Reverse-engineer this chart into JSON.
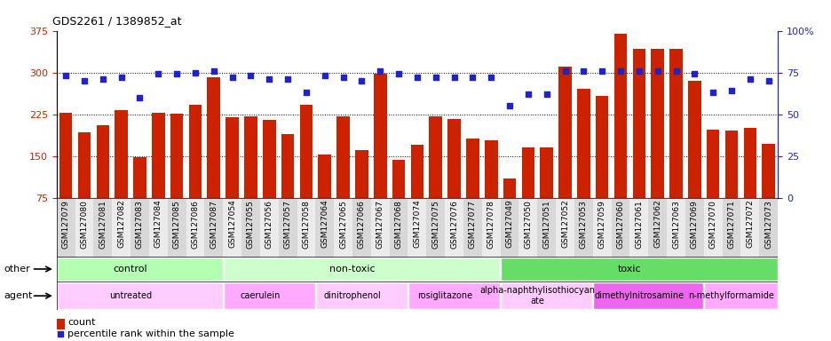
{
  "title": "GDS2261 / 1389852_at",
  "samples": [
    "GSM127079",
    "GSM127080",
    "GSM127081",
    "GSM127082",
    "GSM127083",
    "GSM127084",
    "GSM127085",
    "GSM127086",
    "GSM127087",
    "GSM127054",
    "GSM127055",
    "GSM127056",
    "GSM127057",
    "GSM127058",
    "GSM127064",
    "GSM127065",
    "GSM127066",
    "GSM127067",
    "GSM127068",
    "GSM127074",
    "GSM127075",
    "GSM127076",
    "GSM127077",
    "GSM127078",
    "GSM127049",
    "GSM127050",
    "GSM127051",
    "GSM127052",
    "GSM127053",
    "GSM127059",
    "GSM127060",
    "GSM127061",
    "GSM127062",
    "GSM127063",
    "GSM127069",
    "GSM127070",
    "GSM127071",
    "GSM127072",
    "GSM127073"
  ],
  "bar_values": [
    228,
    193,
    205,
    232,
    148,
    228,
    226,
    242,
    292,
    220,
    222,
    215,
    190,
    242,
    153,
    222,
    160,
    297,
    143,
    170,
    222,
    217,
    182,
    178,
    110,
    165,
    165,
    310,
    270,
    258,
    370,
    342,
    342,
    342,
    285,
    197,
    195,
    200,
    172
  ],
  "percentile_values": [
    73,
    70,
    71,
    72,
    60,
    74,
    74,
    75,
    76,
    72,
    73,
    71,
    71,
    63,
    73,
    72,
    70,
    76,
    74,
    72,
    72,
    72,
    72,
    72,
    55,
    62,
    62,
    76,
    76,
    76,
    76,
    76,
    76,
    76,
    74,
    63,
    64,
    71,
    70
  ],
  "groups": {
    "other_labels": [
      {
        "label": "control",
        "start": 0,
        "end": 8,
        "color": "#b3ffb3"
      },
      {
        "label": "non-toxic",
        "start": 9,
        "end": 23,
        "color": "#ccffcc"
      },
      {
        "label": "toxic",
        "start": 24,
        "end": 38,
        "color": "#66dd66"
      }
    ],
    "agent_labels": [
      {
        "label": "untreated",
        "start": 0,
        "end": 8,
        "color": "#ffccff"
      },
      {
        "label": "caerulein",
        "start": 9,
        "end": 13,
        "color": "#ffaaff"
      },
      {
        "label": "dinitrophenol",
        "start": 14,
        "end": 18,
        "color": "#ffccff"
      },
      {
        "label": "rosiglitazone",
        "start": 19,
        "end": 23,
        "color": "#ffaaff"
      },
      {
        "label": "alpha-naphthylisothiocyan\nate",
        "start": 24,
        "end": 28,
        "color": "#ffccff"
      },
      {
        "label": "dimethylnitrosamine",
        "start": 29,
        "end": 34,
        "color": "#ff55ff"
      },
      {
        "label": "n-methylformamide",
        "start": 35,
        "end": 38,
        "color": "#ffaaff"
      }
    ]
  },
  "bar_color": "#cc2200",
  "dot_color": "#2222cc",
  "ylim_left": [
    75,
    375
  ],
  "ylim_right": [
    0,
    100
  ],
  "yticks_left": [
    75,
    150,
    225,
    300,
    375
  ],
  "yticks_right": [
    0,
    25,
    50,
    75,
    100
  ],
  "background_color": "#ffffff",
  "label_other": "other",
  "label_agent": "agent",
  "legend_count": "count",
  "legend_percentile": "percentile rank within the sample"
}
